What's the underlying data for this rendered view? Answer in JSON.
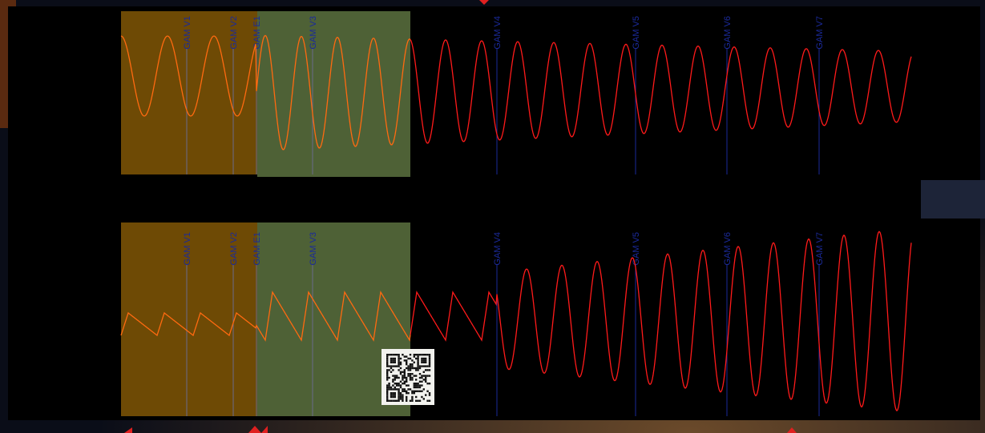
{
  "top_panel": {
    "markers": [
      "GAM V1",
      "GAM V2",
      "GAM E1",
      "GAM V3",
      "GAM V4",
      "GAM V5",
      "GAM V6",
      "GAM V7"
    ]
  },
  "bottom_panel": {
    "markers": [
      "GAM V1",
      "GAM V2",
      "GAM E1",
      "GAM V3",
      "GAM V4",
      "GAM V5",
      "GAM V6",
      "GAM V7"
    ]
  }
}
